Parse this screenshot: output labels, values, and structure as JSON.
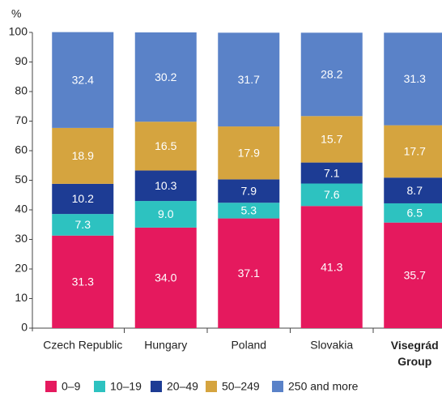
{
  "chart_data": {
    "type": "stacked_bar",
    "y_label": "%",
    "categories": [
      "Czech Republic",
      "Hungary",
      "Poland",
      "Slovakia",
      "Visegrád Group"
    ],
    "series": [
      {
        "name": "0–9",
        "color": "#e5195e",
        "values": [
          31.3,
          34.0,
          37.1,
          41.3,
          35.7
        ],
        "value_labels": [
          "31.3",
          "34.0",
          "37.1",
          "41.3",
          "35.7"
        ]
      },
      {
        "name": "10–19",
        "color": "#2dc2c0",
        "values": [
          7.3,
          9.0,
          5.3,
          7.6,
          6.5
        ],
        "value_labels": [
          "7.3",
          "9.0",
          "5.3",
          "7.6",
          "6.5"
        ]
      },
      {
        "name": "20–49",
        "color": "#1d3c94",
        "values": [
          10.2,
          10.3,
          7.9,
          7.1,
          8.7
        ],
        "value_labels": [
          "10.2",
          "10.3",
          "7.9",
          "7.1",
          "8.7"
        ]
      },
      {
        "name": "50–249",
        "color": "#d5a43f",
        "values": [
          18.9,
          16.5,
          17.9,
          15.7,
          17.7
        ],
        "value_labels": [
          "18.9",
          "16.5",
          "17.9",
          "15.7",
          "17.7"
        ]
      },
      {
        "name": "250 and more",
        "color": "#5a82c8",
        "values": [
          32.4,
          30.2,
          31.7,
          28.2,
          31.3
        ],
        "value_labels": [
          "32.4",
          "30.2",
          "31.7",
          "28.2",
          "31.3"
        ]
      }
    ],
    "ylim": [
      0,
      100
    ],
    "yticks": [
      0,
      10,
      20,
      30,
      40,
      50,
      60,
      70,
      80,
      90,
      100
    ],
    "legend": "bottom"
  }
}
